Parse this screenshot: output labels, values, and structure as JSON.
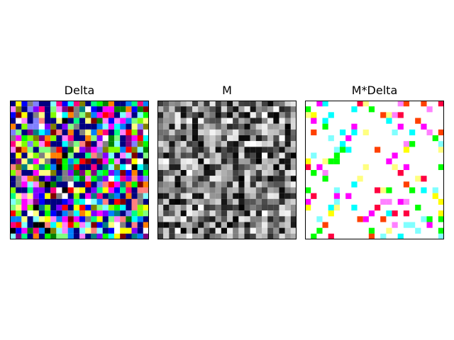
{
  "chart_data": [
    {
      "type": "heatmap",
      "title": "Delta",
      "grid_size": [
        24,
        24
      ],
      "colormap": "random-rgb",
      "seed": 11,
      "axes_visible": false,
      "frame_color": "#000000"
    },
    {
      "type": "heatmap",
      "title": "M",
      "grid_size": [
        24,
        24
      ],
      "colormap": "gray",
      "value_range": [
        0,
        1
      ],
      "seed": 23,
      "axes_visible": false,
      "frame_color": "#000000"
    },
    {
      "type": "heatmap",
      "title": "M*Delta",
      "grid_size": [
        24,
        24
      ],
      "colormap": "sparse-cmy",
      "density": 0.2,
      "palette": [
        "#ff00ff",
        "#ffff00",
        "#00ffff",
        "#ff80ff",
        "#ffff80",
        "#80ffff",
        "#ff0040",
        "#00ff00",
        "#ff4000"
      ],
      "seed": 37,
      "axes_visible": false,
      "frame_color": "#000000"
    }
  ]
}
